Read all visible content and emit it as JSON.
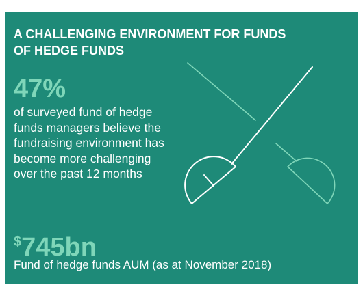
{
  "header": {
    "title_lines": [
      "A CHALLENGING ENVIRONMENT FOR FUNDS",
      "OF HEDGE FUNDS"
    ]
  },
  "stats": [
    {
      "value": "47%",
      "description_lines": [
        "of surveyed fund of hedge",
        "funds managers believe the",
        "fundraising environment has",
        "become more challenging",
        "over the past 12 months"
      ]
    },
    {
      "currency": "$",
      "value": "745bn",
      "description_lines": [
        "Fund of hedge funds AUM (as at November 2018)"
      ]
    }
  ]
}
